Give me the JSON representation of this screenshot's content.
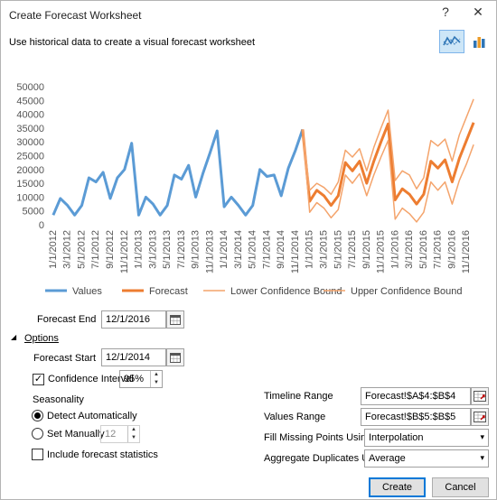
{
  "window": {
    "title": "Create Forecast Worksheet",
    "help_label": "?",
    "close_label": "✕"
  },
  "subtitle": "Use historical data to create a visual forecast worksheet",
  "chart_type_buttons": {
    "line": "line-chart-icon",
    "column": "column-chart-icon",
    "selected": "line"
  },
  "chart_data": {
    "type": "line",
    "y_ticks": [
      "0",
      "5000",
      "10000",
      "15000",
      "20000",
      "25000",
      "30000",
      "35000",
      "40000",
      "45000",
      "50000"
    ],
    "ylim": [
      0,
      50000
    ],
    "x_tick_labels": [
      "1/1/2012",
      "3/1/2012",
      "5/1/2012",
      "7/1/2012",
      "9/1/2012",
      "11/1/2012",
      "1/1/2013",
      "3/1/2013",
      "5/1/2013",
      "7/1/2013",
      "9/1/2013",
      "11/1/2013",
      "1/1/2014",
      "3/1/2014",
      "5/1/2014",
      "7/1/2014",
      "9/1/2014",
      "11/1/2014",
      "1/1/2015",
      "3/1/2015",
      "5/1/2015",
      "7/1/2015",
      "9/1/2015",
      "11/1/2015",
      "1/1/2016",
      "3/1/2016",
      "5/1/2016",
      "7/1/2016",
      "9/1/2016",
      "11/1/2016"
    ],
    "series": [
      {
        "name": "Values",
        "color": "#5b9bd5",
        "start_month": 0,
        "values": [
          3500,
          9500,
          7000,
          3500,
          7000,
          17000,
          15500,
          19000,
          9500,
          17000,
          20000,
          29500,
          3500,
          10000,
          7500,
          3500,
          7000,
          18000,
          16500,
          21500,
          10000,
          18500,
          26000,
          34000,
          6500,
          10000,
          7000,
          3500,
          7000,
          20000,
          17500,
          18000,
          10500,
          20500,
          27000,
          34500
        ]
      },
      {
        "name": "Forecast",
        "color": "#ed7d31",
        "start_month": 35,
        "values": [
          34500,
          8500,
          12500,
          10500,
          7000,
          10500,
          22500,
          19500,
          23000,
          15000,
          23000,
          30000,
          36500,
          9000,
          13000,
          11000,
          7500,
          11000,
          23000,
          20500,
          23500,
          15500,
          24000,
          30500,
          37000
        ]
      },
      {
        "name": "Lower Confidence Bound",
        "color": "#f4a46c",
        "start_month": 35,
        "values": [
          34500,
          4500,
          8000,
          6000,
          2500,
          5500,
          18000,
          15000,
          18500,
          10500,
          18000,
          24500,
          30500,
          2000,
          6000,
          4000,
          1000,
          4500,
          15500,
          12500,
          15500,
          7500,
          16000,
          22000,
          29000
        ]
      },
      {
        "name": "Upper Confidence Bound",
        "color": "#f4a46c",
        "start_month": 35,
        "values": [
          34500,
          12500,
          15000,
          13500,
          11000,
          15500,
          27000,
          24500,
          27500,
          19500,
          28000,
          35000,
          41500,
          16000,
          19500,
          18000,
          13000,
          17000,
          30500,
          28500,
          31000,
          23000,
          32500,
          39000,
          45500
        ]
      }
    ],
    "legend_position": "bottom"
  },
  "form": {
    "forecast_end_label": "Forecast End",
    "forecast_end_value": "12/1/2016",
    "options_label": "Options",
    "forecast_start_label": "Forecast Start",
    "forecast_start_value": "12/1/2014",
    "confidence_label": "Confidence Interval",
    "confidence_checked": "✓",
    "confidence_value": "95%",
    "seasonality_label": "Seasonality",
    "detect_label": "Detect Automatically",
    "manual_label": "Set Manually",
    "manual_value": "12",
    "include_stats_label": "Include forecast statistics",
    "timeline_label": "Timeline Range",
    "timeline_value": "Forecast!$A$4:$B$4",
    "values_label": "Values Range",
    "values_value": "Forecast!$B$5:$B$5",
    "fill_label": "Fill Missing Points Using",
    "fill_value": "Interpolation",
    "aggregate_label": "Aggregate Duplicates Using",
    "aggregate_value": "Average"
  },
  "buttons": {
    "create": "Create",
    "cancel": "Cancel"
  }
}
